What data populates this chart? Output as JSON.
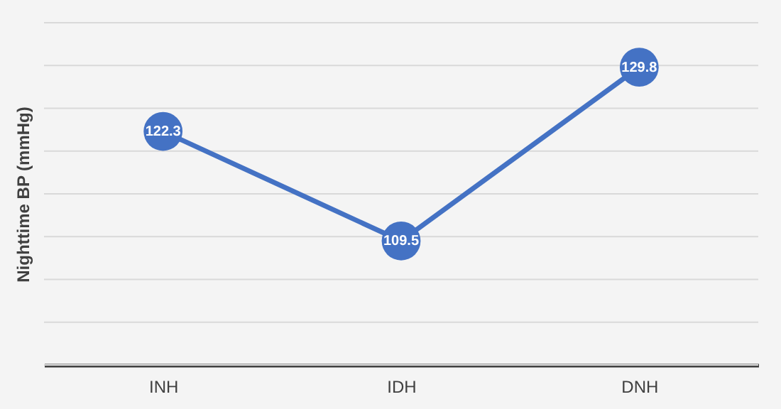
{
  "chart_data": {
    "type": "line",
    "ylabel": "Nighttime BP (mmHg)",
    "categories": [
      "INH",
      "IDH",
      "DNH"
    ],
    "series": [
      {
        "color": "#4472c4",
        "values": [
          122.3,
          109.5,
          129.8
        ]
      }
    ],
    "ylim": [
      95,
      135
    ],
    "yticks": [
      {
        "value": 95,
        "label": null
      },
      {
        "value": 100,
        "label": null
      },
      {
        "value": 105,
        "label": null
      },
      {
        "value": 110,
        "label": null
      },
      {
        "value": 115,
        "label": null
      },
      {
        "value": 120,
        "label": null
      },
      {
        "value": 125,
        "label": null
      },
      {
        "value": 130,
        "label": null
      },
      {
        "value": 135,
        "label": null
      }
    ],
    "tick_labels": "x",
    "grid": "y",
    "marker": "circle",
    "line_style": "solid",
    "data_labels": true
  }
}
